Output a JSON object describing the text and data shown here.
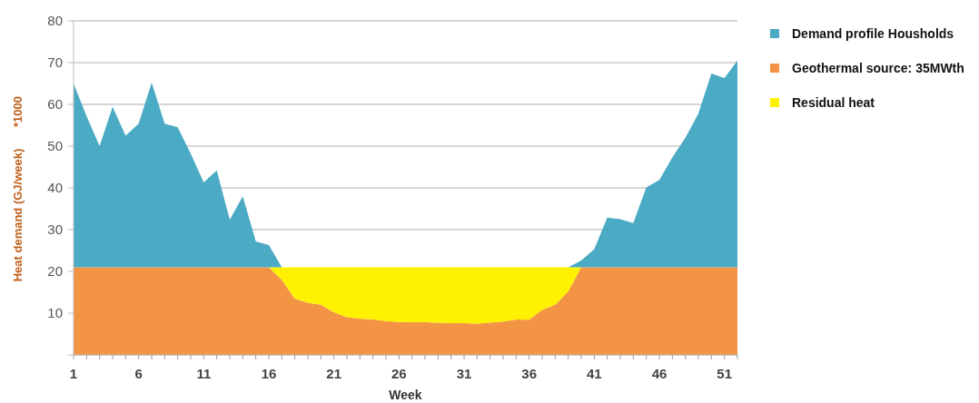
{
  "chart_data": {
    "type": "area",
    "stacked": true,
    "xlabel": "Week",
    "ylabel": "Heat demand (GJ/week)",
    "annotations": [
      "*1000"
    ],
    "x": [
      1,
      2,
      3,
      4,
      5,
      6,
      7,
      8,
      9,
      10,
      11,
      12,
      13,
      14,
      15,
      16,
      17,
      18,
      19,
      20,
      21,
      22,
      23,
      24,
      25,
      26,
      27,
      28,
      29,
      30,
      31,
      32,
      33,
      34,
      35,
      36,
      37,
      38,
      39,
      40,
      41,
      42,
      43,
      44,
      45,
      46,
      47,
      48,
      49,
      50,
      51,
      52
    ],
    "xlim": [
      1,
      52
    ],
    "xticks": [
      1,
      6,
      11,
      16,
      21,
      26,
      31,
      36,
      41,
      46,
      51
    ],
    "ylim": [
      0,
      80
    ],
    "yticks": [
      {
        "value": 0,
        "label": null
      },
      10,
      20,
      30,
      40,
      50,
      60,
      70,
      80
    ],
    "grid": "y",
    "legend": "top right",
    "series": [
      {
        "name": "Geothermal source: 35MWth",
        "color": "#f39445",
        "values": [
          21,
          21,
          21,
          21,
          21,
          21,
          21,
          21,
          21,
          21,
          21,
          21,
          21,
          21,
          21,
          21,
          18,
          13.5,
          12.5,
          12,
          10.2,
          9,
          8.7,
          8.5,
          8.1,
          7.9,
          7.8,
          7.8,
          7.7,
          7.6,
          7.6,
          7.5,
          7.7,
          8,
          8.5,
          8.4,
          10.8,
          12,
          15.2,
          21,
          21,
          21,
          21,
          21,
          21,
          21,
          21,
          21,
          21,
          21,
          21,
          21
        ]
      },
      {
        "name": "Residual heat",
        "color": "#fff200",
        "values": [
          0,
          0,
          0,
          0,
          0,
          0,
          0,
          0,
          0,
          0,
          0,
          0,
          0,
          0,
          0,
          0,
          3,
          7.5,
          8.5,
          9,
          10.8,
          12,
          12.3,
          12.5,
          12.9,
          13.1,
          13.2,
          13.2,
          13.3,
          13.4,
          13.4,
          13.5,
          13.3,
          13,
          12.5,
          12.6,
          10.2,
          9,
          5.8,
          0,
          0,
          0,
          0,
          0,
          0,
          0,
          0,
          0,
          0,
          0,
          0,
          0
        ]
      },
      {
        "name": "Demand profile Housholds",
        "color": "#4babc4",
        "values": [
          44,
          36.2,
          29,
          38.4,
          31.5,
          34.4,
          44.2,
          34.4,
          33.5,
          27.2,
          20.3,
          23.2,
          11.4,
          17,
          6.2,
          5.3,
          0,
          0,
          0,
          0,
          0,
          0,
          0,
          0,
          0,
          0,
          0,
          0,
          0,
          0,
          0,
          0,
          0,
          0,
          0,
          0,
          0,
          0,
          0,
          1.6,
          4.3,
          11.9,
          11.5,
          10.6,
          19.1,
          20.9,
          26.3,
          31,
          36.8,
          46.4,
          45.3,
          49.5
        ]
      }
    ]
  }
}
